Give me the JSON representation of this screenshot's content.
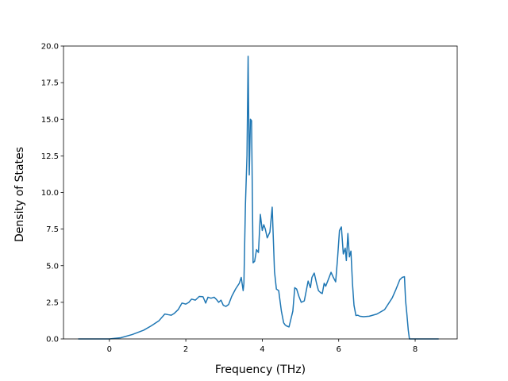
{
  "chart_data": {
    "type": "line",
    "title": "",
    "xlabel": "Frequency (THz)",
    "ylabel": "Density of States",
    "xlim": [
      -1.2,
      9.1
    ],
    "ylim": [
      0.0,
      20.0
    ],
    "xticks": [
      0,
      2,
      4,
      6,
      8
    ],
    "xtick_labels": [
      "0",
      "2",
      "4",
      "6",
      "8"
    ],
    "yticks": [
      0.0,
      2.5,
      5.0,
      7.5,
      10.0,
      12.5,
      15.0,
      17.5,
      20.0
    ],
    "ytick_labels": [
      "0.0",
      "2.5",
      "5.0",
      "7.5",
      "10.0",
      "12.5",
      "15.0",
      "17.5",
      "20.0"
    ],
    "grid": false,
    "line_color": "#1f77b4",
    "series": [
      {
        "x": [
          -0.8,
          -0.4,
          0.0,
          0.3,
          0.6,
          0.9,
          1.1,
          1.3,
          1.45,
          1.55,
          1.62,
          1.7,
          1.8,
          1.9,
          2.0,
          2.08,
          2.15,
          2.25,
          2.35,
          2.45,
          2.52,
          2.58,
          2.66,
          2.74,
          2.8,
          2.86,
          2.92,
          2.98,
          3.05,
          3.12,
          3.2,
          3.3,
          3.4,
          3.45,
          3.5,
          3.52,
          3.56,
          3.6,
          3.63,
          3.66,
          3.69,
          3.72,
          3.76,
          3.8,
          3.85,
          3.9,
          3.95,
          4.0,
          4.04,
          4.08,
          4.13,
          4.2,
          4.26,
          4.32,
          4.37,
          4.43,
          4.5,
          4.56,
          4.6,
          4.64,
          4.7,
          4.8,
          4.85,
          4.9,
          4.96,
          5.02,
          5.1,
          5.2,
          5.26,
          5.3,
          5.36,
          5.42,
          5.47,
          5.53,
          5.57,
          5.62,
          5.66,
          5.72,
          5.8,
          5.86,
          5.92,
          5.97,
          6.02,
          6.07,
          6.12,
          6.17,
          6.2,
          6.24,
          6.28,
          6.32,
          6.36,
          6.4,
          6.45,
          6.5,
          6.55,
          6.65,
          6.8,
          7.0,
          7.2,
          7.4,
          7.5,
          7.6,
          7.66,
          7.72,
          7.75,
          7.78,
          7.82,
          7.85,
          7.9,
          8.0,
          8.3,
          8.6
        ],
        "y": [
          0.0,
          0.0,
          0.0,
          0.08,
          0.3,
          0.6,
          0.9,
          1.25,
          1.7,
          1.65,
          1.62,
          1.75,
          2.0,
          2.45,
          2.38,
          2.5,
          2.72,
          2.65,
          2.9,
          2.88,
          2.45,
          2.85,
          2.78,
          2.85,
          2.7,
          2.5,
          2.65,
          2.3,
          2.22,
          2.35,
          2.9,
          3.4,
          3.8,
          4.2,
          3.3,
          3.8,
          9.2,
          12.5,
          19.3,
          11.2,
          15.0,
          14.9,
          5.2,
          5.3,
          6.1,
          5.9,
          8.5,
          7.4,
          7.8,
          7.5,
          6.9,
          7.3,
          9.0,
          4.6,
          3.4,
          3.3,
          1.9,
          1.1,
          0.95,
          0.88,
          0.82,
          1.9,
          3.5,
          3.4,
          2.9,
          2.5,
          2.6,
          3.95,
          3.5,
          4.2,
          4.5,
          3.8,
          3.3,
          3.15,
          3.1,
          3.8,
          3.6,
          4.0,
          4.55,
          4.2,
          3.9,
          5.5,
          7.4,
          7.65,
          5.8,
          6.2,
          5.35,
          7.2,
          5.6,
          6.0,
          3.8,
          2.3,
          1.6,
          1.62,
          1.55,
          1.52,
          1.55,
          1.7,
          2.0,
          2.8,
          3.4,
          4.05,
          4.2,
          4.25,
          2.6,
          1.8,
          0.6,
          0.0,
          0.0,
          0.0,
          0.0,
          0.0
        ]
      }
    ]
  }
}
